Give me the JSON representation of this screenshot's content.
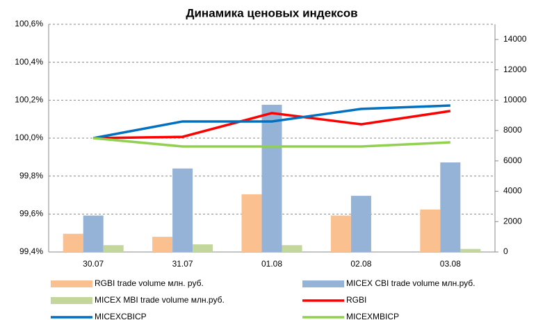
{
  "chart_data": {
    "type": "bar-line",
    "title": "Динамика ценовых индексов",
    "categories": [
      "30.07",
      "31.07",
      "01.08",
      "02.08",
      "03.08"
    ],
    "ylim": [
      99.4,
      100.6
    ],
    "yticks": [
      {
        "value": 99.4,
        "label": "99,4%"
      },
      {
        "value": 99.6,
        "label": "99,6%"
      },
      {
        "value": 99.8,
        "label": "99,8%"
      },
      {
        "value": 100.0,
        "label": "100,0%"
      },
      {
        "value": 100.2,
        "label": "100,2%"
      },
      {
        "value": 100.4,
        "label": "100,4%"
      },
      {
        "value": 100.6,
        "label": "100,6%"
      }
    ],
    "y2lim": [
      0,
      15000
    ],
    "y2ticks": [
      0,
      2000,
      4000,
      6000,
      8000,
      10000,
      12000,
      14000
    ],
    "grid": true,
    "series": [
      {
        "name": "RGBI trade volume млн. руб.",
        "color": "#fac090",
        "type": "bar",
        "axis": "y2",
        "values": [
          1200,
          1000,
          3800,
          2400,
          2800
        ]
      },
      {
        "name": "MICEX CBI trade volume млн.руб.",
        "color": "#95b3d7",
        "type": "bar",
        "axis": "y2",
        "values": [
          2400,
          5500,
          9700,
          3700,
          5900
        ]
      },
      {
        "name": "MICEX MBI trade volume млн.руб.",
        "color": "#c3d69b",
        "type": "bar",
        "axis": "y2",
        "values": [
          450,
          500,
          450,
          null,
          200
        ]
      },
      {
        "name": "RGBI",
        "color": "#ff0000",
        "type": "line",
        "values": [
          100.0,
          100.007,
          100.132,
          100.073,
          100.143
        ]
      },
      {
        "name": "MICEXCBICP",
        "color": "#0070c0",
        "type": "line",
        "values": [
          100.0,
          100.088,
          100.088,
          100.154,
          100.172
        ]
      },
      {
        "name": "MICEXMBICP",
        "color": "#92d050",
        "type": "line",
        "values": [
          100.0,
          99.956,
          99.956,
          99.956,
          99.978
        ]
      }
    ]
  }
}
